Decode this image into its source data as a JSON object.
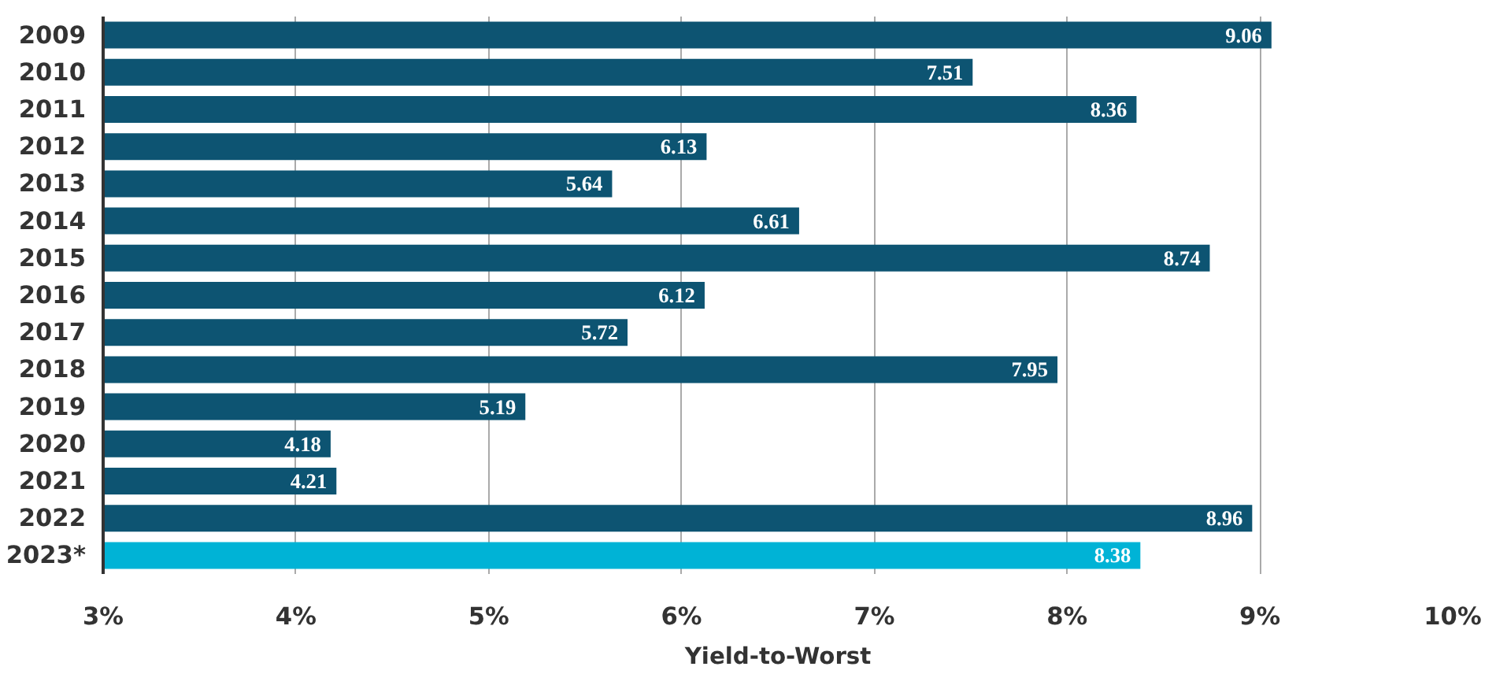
{
  "chart_data": {
    "type": "bar",
    "orientation": "horizontal",
    "xlabel": "Yield-to-Worst",
    "categories": [
      "2009",
      "2010",
      "2011",
      "2012",
      "2013",
      "2014",
      "2015",
      "2016",
      "2017",
      "2018",
      "2019",
      "2020",
      "2021",
      "2022",
      "2023*"
    ],
    "values": [
      9.06,
      7.51,
      8.36,
      6.13,
      5.64,
      6.61,
      8.74,
      6.12,
      5.72,
      7.95,
      5.19,
      4.18,
      4.21,
      8.96,
      8.38
    ],
    "colors": [
      "#0d5472",
      "#0d5472",
      "#0d5472",
      "#0d5472",
      "#0d5472",
      "#0d5472",
      "#0d5472",
      "#0d5472",
      "#0d5472",
      "#0d5472",
      "#0d5472",
      "#0d5472",
      "#0d5472",
      "#0d5472",
      "#00b3d6"
    ],
    "xlim": [
      3,
      10
    ],
    "xticks": [
      {
        "value": 3,
        "label": "3%"
      },
      {
        "value": 4,
        "label": "4%"
      },
      {
        "value": 5,
        "label": "5%"
      },
      {
        "value": 6,
        "label": "6%"
      },
      {
        "value": 7,
        "label": "7%"
      },
      {
        "value": 8,
        "label": "8%"
      },
      {
        "value": 9,
        "label": "9%"
      },
      {
        "value": 10,
        "label": "10%"
      }
    ],
    "grid": "x",
    "data_labels": true
  }
}
